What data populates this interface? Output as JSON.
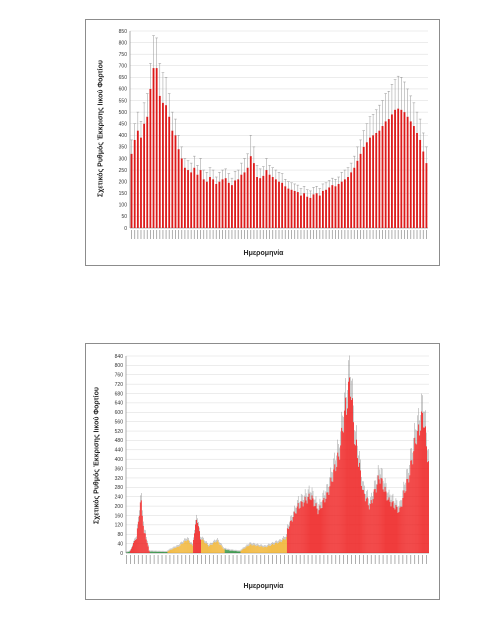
{
  "charts": [
    {
      "id": "chart-1",
      "chart_data": {
        "type": "bar",
        "title": "",
        "xlabel": "Ημερομηνία",
        "ylabel": "Σχετικός Ρυθμός Έκκρισης Ιικού Φορτίου",
        "ylim": [
          0,
          850
        ],
        "yticks": [
          0,
          50,
          100,
          150,
          200,
          250,
          300,
          350,
          400,
          450,
          500,
          550,
          600,
          650,
          700,
          750,
          800,
          850
        ],
        "grid": true,
        "error_bars": true,
        "bar_color": "#dd1a1a",
        "series": [
          {
            "values": [
              320,
              380,
              420,
              390,
              450,
              480,
              600,
              690,
              690,
              570,
              540,
              530,
              480,
              420,
              400,
              340,
              300,
              260,
              250,
              240,
              260,
              230,
              250,
              210,
              200,
              220,
              210,
              190,
              200,
              210,
              215,
              195,
              185,
              205,
              210,
              230,
              240,
              260,
              310,
              280,
              220,
              215,
              225,
              250,
              230,
              220,
              210,
              200,
              195,
              180,
              170,
              165,
              160,
              155,
              140,
              150,
              135,
              130,
              145,
              150,
              140,
              160,
              165,
              175,
              185,
              180,
              190,
              200,
              210,
              220,
              240,
              260,
              290,
              320,
              350,
              370,
              390,
              400,
              410,
              420,
              440,
              460,
              470,
              490,
              510,
              515,
              510,
              500,
              480,
              460,
              440,
              410,
              380,
              330,
              280
            ],
            "errors": [
              60,
              70,
              80,
              70,
              90,
              100,
              110,
              140,
              130,
              140,
              130,
              120,
              100,
              80,
              70,
              60,
              50,
              40,
              40,
              40,
              50,
              40,
              50,
              40,
              40,
              40,
              40,
              30,
              40,
              40,
              40,
              40,
              30,
              40,
              40,
              50,
              60,
              60,
              90,
              70,
              50,
              40,
              40,
              50,
              40,
              40,
              40,
              40,
              40,
              30,
              30,
              30,
              30,
              30,
              30,
              30,
              30,
              30,
              30,
              30,
              30,
              30,
              30,
              30,
              30,
              30,
              30,
              40,
              40,
              40,
              40,
              50,
              60,
              60,
              70,
              80,
              90,
              90,
              100,
              110,
              110,
              120,
              120,
              130,
              130,
              140,
              140,
              130,
              120,
              110,
              100,
              90,
              90,
              80,
              70
            ]
          }
        ]
      }
    },
    {
      "id": "chart-2",
      "chart_data": {
        "type": "bar",
        "title": "",
        "xlabel": "Ημερομηνία",
        "ylabel": "Σχετικός Ρυθμός Έκκρισης Ιικού Φορτίου",
        "ylim": [
          0,
          840
        ],
        "yticks": [
          0,
          40,
          80,
          120,
          160,
          200,
          240,
          280,
          320,
          360,
          400,
          440,
          480,
          520,
          560,
          600,
          640,
          680,
          720,
          760,
          800,
          840
        ],
        "grid": true,
        "error_bars": true,
        "color_levels": {
          "low": "#2a8f3c",
          "mid": "#f0b12a",
          "high": "#ee1c1c"
        },
        "segments": [
          {
            "from_value": 2,
            "to_value": 6,
            "count": 4,
            "level": "low"
          },
          {
            "from_value": 10,
            "to_value": 60,
            "count": 6,
            "level": "high"
          },
          {
            "from_value": 60,
            "to_value": 210,
            "count": 5,
            "level": "high"
          },
          {
            "from_value": 210,
            "to_value": 80,
            "count": 4,
            "level": "high"
          },
          {
            "from_value": 80,
            "to_value": 8,
            "count": 5,
            "level": "high"
          },
          {
            "from_value": 6,
            "to_value": 4,
            "count": 18,
            "level": "low"
          },
          {
            "from_value": 8,
            "to_value": 25,
            "count": 10,
            "level": "mid"
          },
          {
            "from_value": 25,
            "to_value": 55,
            "count": 10,
            "level": "mid"
          },
          {
            "from_value": 55,
            "to_value": 30,
            "count": 6,
            "level": "mid"
          },
          {
            "from_value": 60,
            "to_value": 140,
            "count": 4,
            "level": "high"
          },
          {
            "from_value": 140,
            "to_value": 60,
            "count": 4,
            "level": "high"
          },
          {
            "from_value": 60,
            "to_value": 30,
            "count": 8,
            "level": "mid"
          },
          {
            "from_value": 30,
            "to_value": 50,
            "count": 8,
            "level": "mid"
          },
          {
            "from_value": 50,
            "to_value": 15,
            "count": 8,
            "level": "mid"
          },
          {
            "from_value": 15,
            "to_value": 10,
            "count": 6,
            "level": "low"
          },
          {
            "from_value": 10,
            "to_value": 6,
            "count": 10,
            "level": "low"
          },
          {
            "from_value": 10,
            "to_value": 35,
            "count": 10,
            "level": "mid"
          },
          {
            "from_value": 35,
            "to_value": 25,
            "count": 15,
            "level": "mid"
          },
          {
            "from_value": 25,
            "to_value": 45,
            "count": 14,
            "level": "mid"
          },
          {
            "from_value": 45,
            "to_value": 65,
            "count": 8,
            "level": "mid"
          },
          {
            "from_value": 100,
            "to_value": 200,
            "count": 12,
            "level": "high"
          },
          {
            "from_value": 200,
            "to_value": 240,
            "count": 12,
            "level": "high"
          },
          {
            "from_value": 240,
            "to_value": 180,
            "count": 8,
            "level": "high"
          },
          {
            "from_value": 180,
            "to_value": 240,
            "count": 8,
            "level": "high"
          },
          {
            "from_value": 240,
            "to_value": 400,
            "count": 12,
            "level": "high"
          },
          {
            "from_value": 400,
            "to_value": 620,
            "count": 8,
            "level": "high"
          },
          {
            "from_value": 620,
            "to_value": 720,
            "count": 4,
            "level": "high"
          },
          {
            "from_value": 720,
            "to_value": 450,
            "count": 6,
            "level": "high"
          },
          {
            "from_value": 450,
            "to_value": 250,
            "count": 8,
            "level": "high"
          },
          {
            "from_value": 250,
            "to_value": 200,
            "count": 6,
            "level": "high"
          },
          {
            "from_value": 200,
            "to_value": 320,
            "count": 10,
            "level": "high"
          },
          {
            "from_value": 320,
            "to_value": 220,
            "count": 10,
            "level": "high"
          },
          {
            "from_value": 220,
            "to_value": 180,
            "count": 10,
            "level": "high"
          },
          {
            "from_value": 180,
            "to_value": 300,
            "count": 8,
            "level": "high"
          },
          {
            "from_value": 300,
            "to_value": 500,
            "count": 10,
            "level": "high"
          },
          {
            "from_value": 500,
            "to_value": 580,
            "count": 6,
            "level": "high"
          },
          {
            "from_value": 580,
            "to_value": 380,
            "count": 6,
            "level": "high"
          }
        ],
        "error_fraction": 0.12
      }
    }
  ]
}
